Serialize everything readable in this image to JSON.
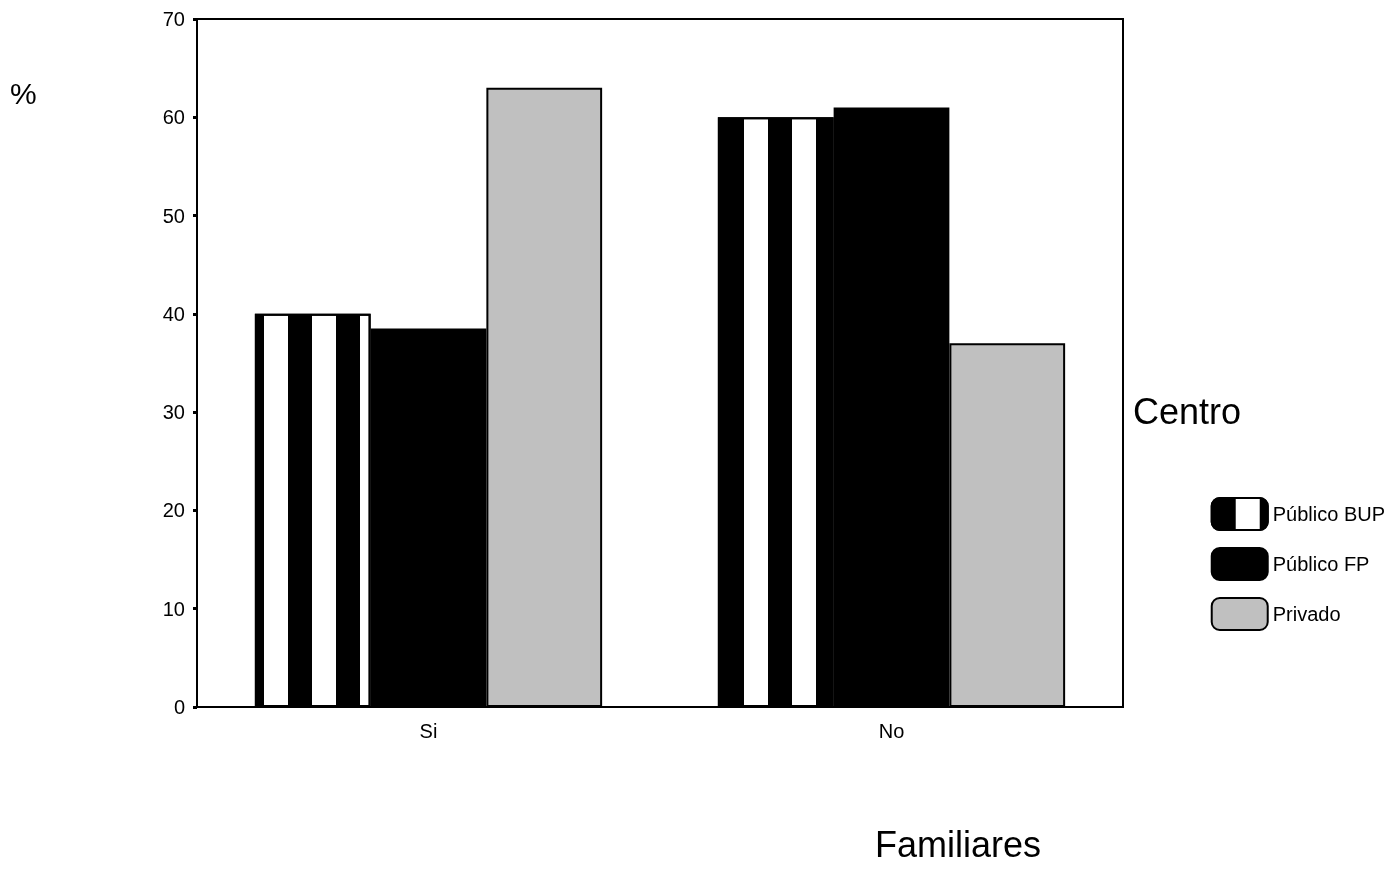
{
  "chart_data": {
    "type": "bar",
    "xlabel": "Familiares",
    "ylabel": "%",
    "legend_title": "Centro",
    "categories": [
      "Si",
      "No"
    ],
    "series": [
      {
        "name": "Público BUP",
        "color": "#ffffff",
        "values": [
          40,
          60
        ]
      },
      {
        "name": "Público FP",
        "color": "#000000",
        "values": [
          38.5,
          61
        ]
      },
      {
        "name": "Privado",
        "color": "#c0c0c0",
        "values": [
          63,
          37
        ]
      }
    ],
    "ylim": [
      0,
      70
    ],
    "yticks": [
      0,
      10,
      20,
      30,
      40,
      50,
      60,
      70
    ],
    "grid": false,
    "legend": "right"
  }
}
